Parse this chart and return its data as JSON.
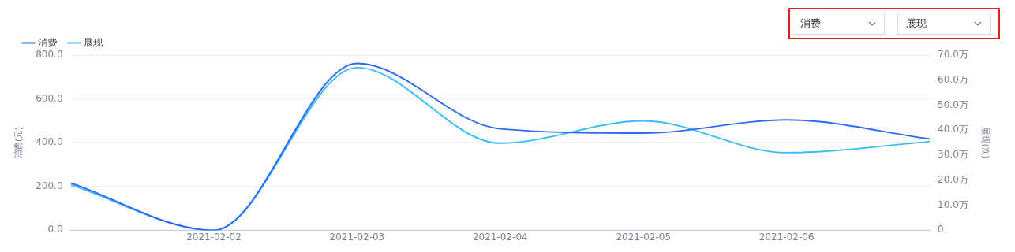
{
  "chart_data": {
    "type": "line",
    "x": [
      "2021-02-01",
      "2021-02-02",
      "2021-02-03",
      "2021-02-04",
      "2021-02-05",
      "2021-02-06",
      "2021-02-07"
    ],
    "series": [
      {
        "name": "消费",
        "color": "#2f6bf5",
        "values": [
          216,
          0,
          762,
          463,
          444,
          504,
          417
        ]
      },
      {
        "name": "展现",
        "color": "#3bbdf5",
        "axis": "y2",
        "values": [
          18.2,
          0,
          65.0,
          34.8,
          43.7,
          31.0,
          35.4
        ]
      }
    ],
    "xlim": [
      "2021-02-01",
      "2021-02-07"
    ],
    "xticks": [
      "2021-02-02",
      "2021-02-03",
      "2021-02-04",
      "2021-02-05",
      "2021-02-06"
    ],
    "ylim": [
      0,
      800
    ],
    "yticks": [
      {
        "value": 0,
        "label": "0.0"
      },
      {
        "value": 200,
        "label": "200.0"
      },
      {
        "value": 400,
        "label": "400.0"
      },
      {
        "value": 600,
        "label": "600.0"
      },
      {
        "value": 800,
        "label": "800.0"
      }
    ],
    "y2lim": [
      0,
      70
    ],
    "y2ticks": [
      0,
      {
        "value": 10,
        "label": "10.0万"
      },
      {
        "value": 20,
        "label": "20.0万"
      },
      {
        "value": 30,
        "label": "30.0万"
      },
      {
        "value": 40,
        "label": "40.0万"
      },
      {
        "value": 50,
        "label": "50.0万"
      },
      {
        "value": 60,
        "label": "60.0万"
      },
      {
        "value": 70,
        "label": "70.0万"
      }
    ],
    "ylabel": "消费(元)",
    "y2label": "展现(次)",
    "grid": "y",
    "legend": "top left",
    "marker": "none",
    "line_style": "solid"
  }
}
